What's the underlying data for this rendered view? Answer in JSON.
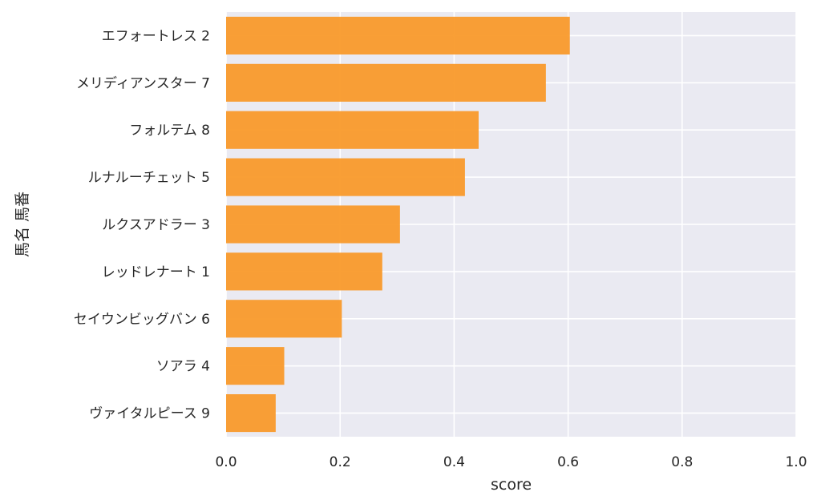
{
  "chart_data": {
    "type": "bar",
    "orientation": "horizontal",
    "categories": [
      "エフォートレス 2",
      "メリディアンスター 7",
      "フォルテム 8",
      "ルナルーチェット 5",
      "ルクスアドラー 3",
      "レッドレナート 1",
      "セイウンビッグバン 6",
      "ソアラ 4",
      "ヴァイタルピース 9"
    ],
    "values": [
      0.603,
      0.561,
      0.443,
      0.419,
      0.305,
      0.274,
      0.203,
      0.102,
      0.087
    ],
    "xlabel": "score",
    "ylabel": "馬名 馬番",
    "xlim": [
      0.0,
      1.0
    ],
    "xticks": [
      "0.0",
      "0.2",
      "0.4",
      "0.6",
      "0.8",
      "1.0"
    ],
    "grid": true,
    "colors": {
      "bar": "#f99a2b",
      "background": "#eaeaf2",
      "grid": "#ffffff",
      "text": "#262626"
    }
  }
}
